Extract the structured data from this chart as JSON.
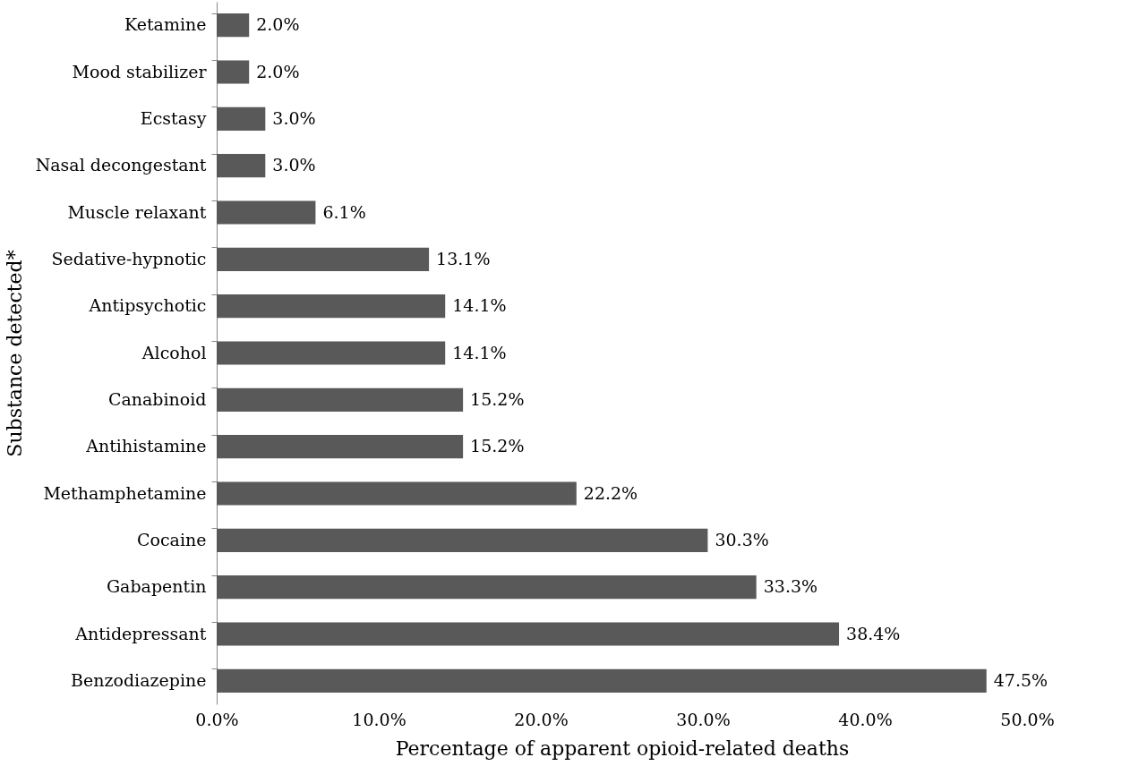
{
  "chart_data": {
    "type": "bar",
    "orientation": "horizontal",
    "categories": [
      "Ketamine",
      "Mood stabilizer",
      "Ecstasy",
      "Nasal decongestant",
      "Muscle relaxant",
      "Sedative-hypnotic",
      "Antipsychotic",
      "Alcohol",
      "Canabinoid",
      "Antihistamine",
      "Methamphetamine",
      "Cocaine",
      "Gabapentin",
      "Antidepressant",
      "Benzodiazepine"
    ],
    "values": [
      2.0,
      2.0,
      3.0,
      3.0,
      6.1,
      13.1,
      14.1,
      14.1,
      15.2,
      15.2,
      22.2,
      30.3,
      33.3,
      38.4,
      47.5
    ],
    "value_labels": [
      "2.0%",
      "2.0%",
      "3.0%",
      "3.0%",
      "6.1%",
      "13.1%",
      "14.1%",
      "14.1%",
      "15.2%",
      "15.2%",
      "22.2%",
      "30.3%",
      "33.3%",
      "38.4%",
      "47.5%"
    ],
    "color": "#595959",
    "xlabel": "Percentage of apparent opioid-related deaths",
    "ylabel": "Substance detected*",
    "xlim": [
      0,
      50
    ],
    "xticks": [
      {
        "value": 0,
        "label": "0.0%"
      },
      {
        "value": 10,
        "label": "10.0%"
      },
      {
        "value": 20,
        "label": "20.0%"
      },
      {
        "value": 30,
        "label": "30.0%"
      },
      {
        "value": 40,
        "label": "40.0%"
      },
      {
        "value": 50,
        "label": "50.0%"
      }
    ],
    "grid": false
  }
}
